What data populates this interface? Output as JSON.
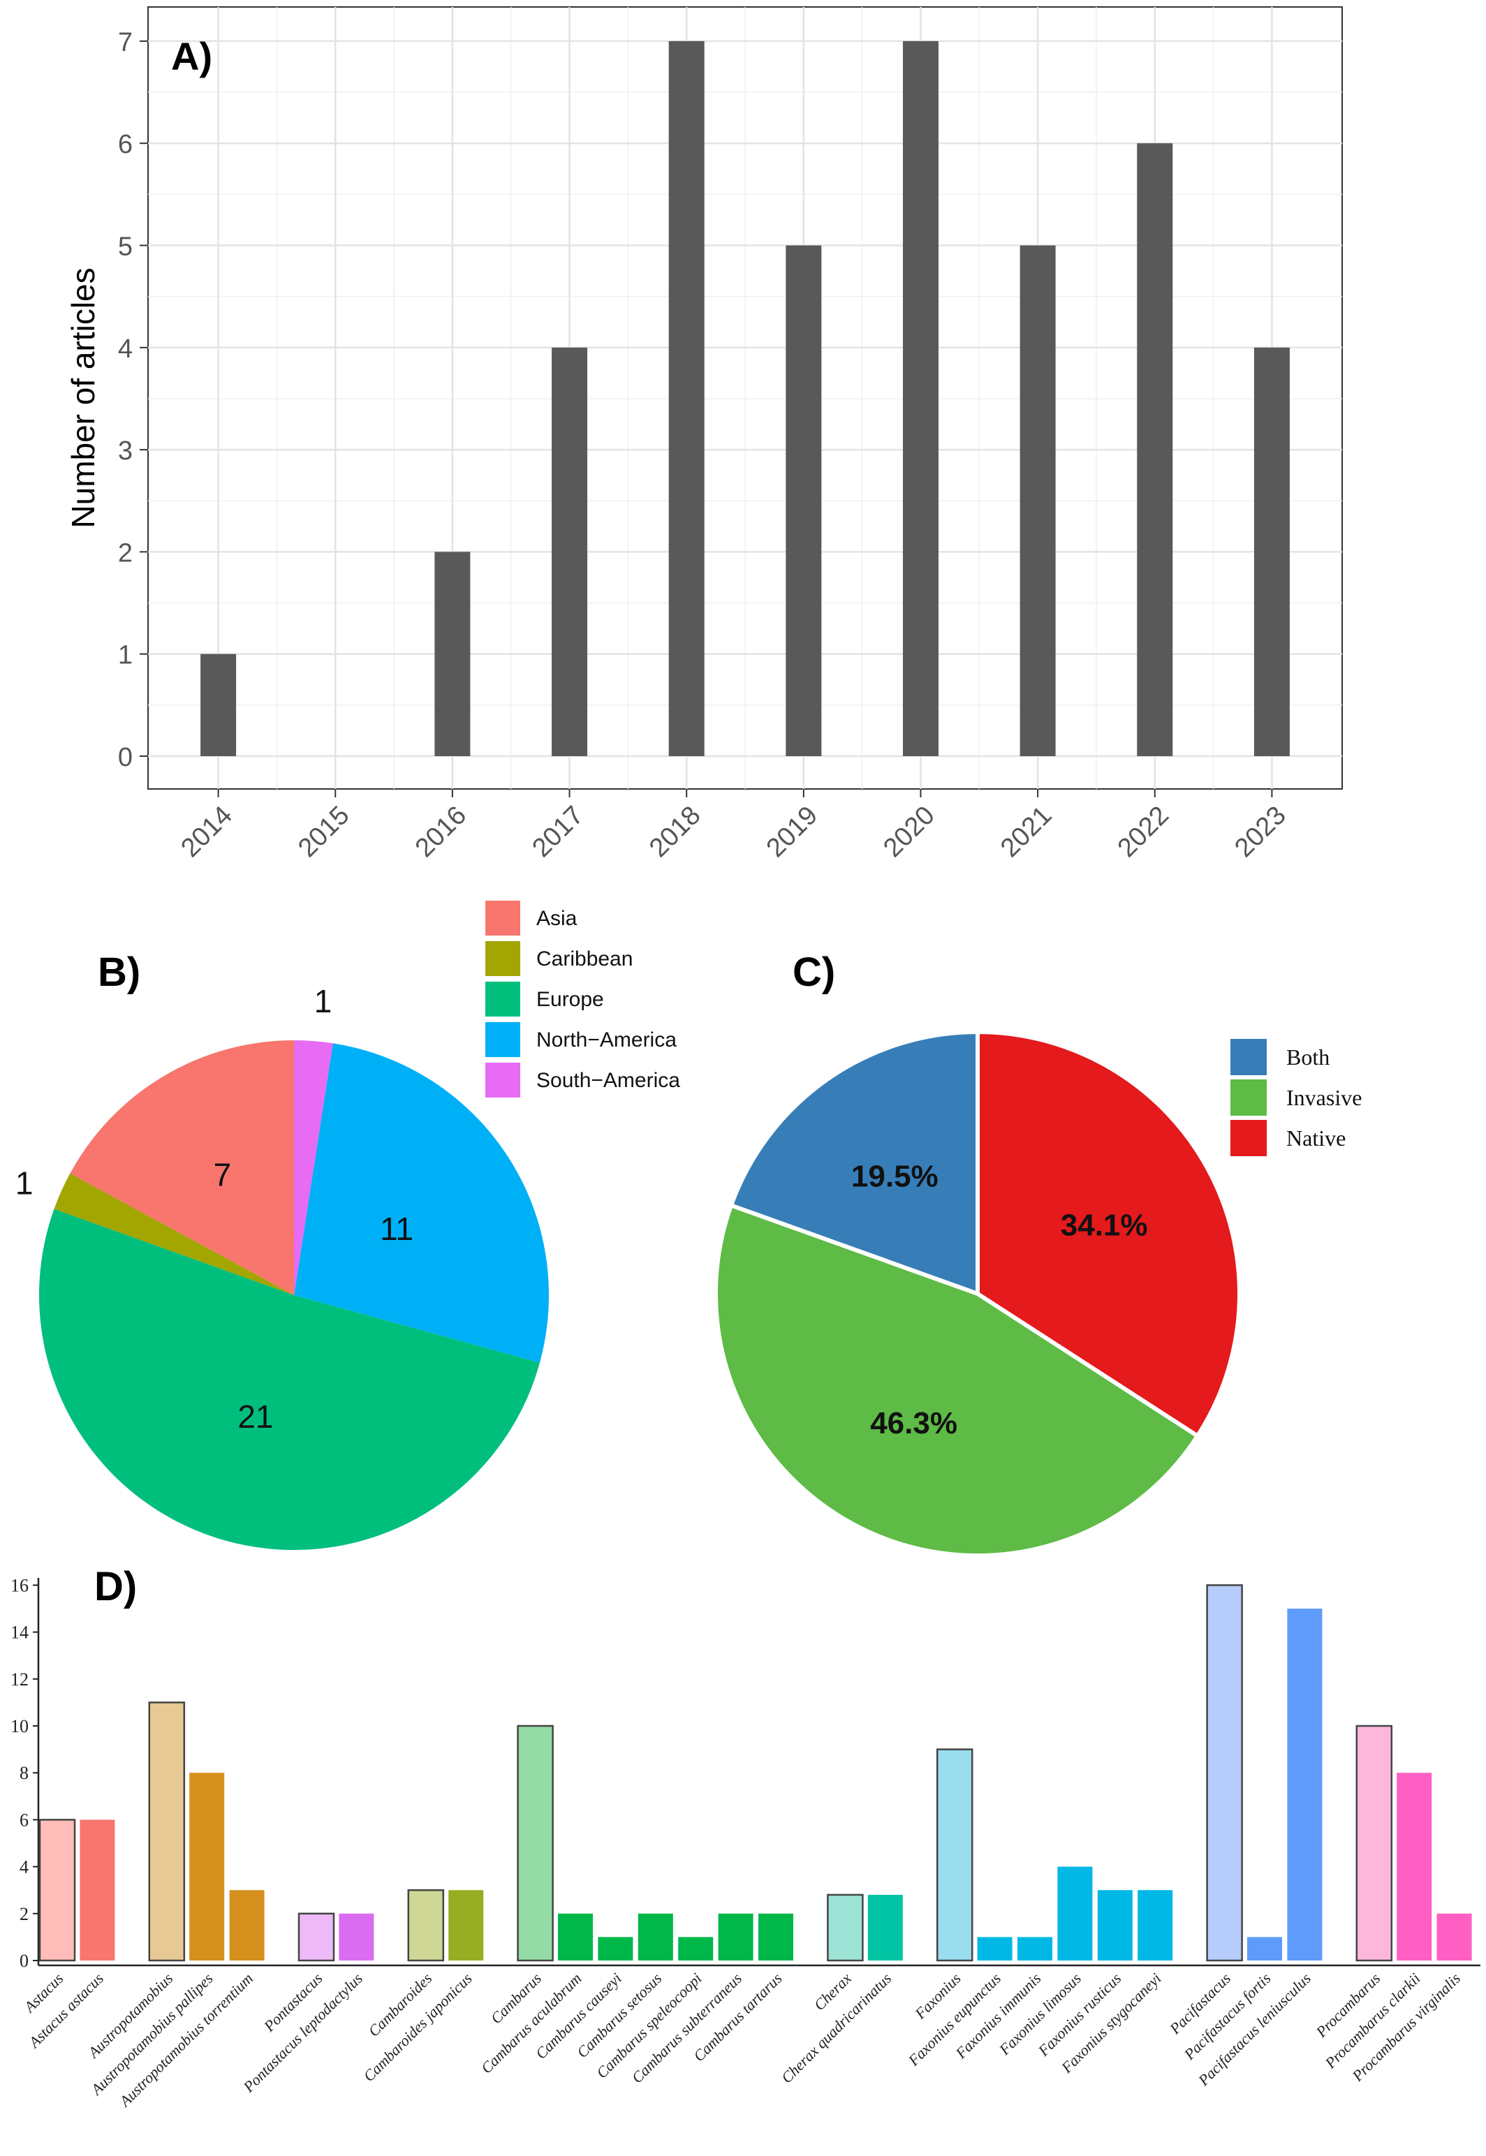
{
  "chart_data": [
    {
      "type": "bar",
      "panel_label": "A)",
      "ylabel": "Number of articles",
      "categories": [
        "2014",
        "2015",
        "2016",
        "2017",
        "2018",
        "2019",
        "2020",
        "2021",
        "2022",
        "2023"
      ],
      "values": [
        1,
        0,
        2,
        4,
        7,
        5,
        7,
        5,
        6,
        4
      ],
      "ylim": [
        0,
        7
      ],
      "yticks": [
        0,
        1,
        2,
        3,
        4,
        5,
        6,
        7
      ],
      "grid": true,
      "bar_color": "#595959"
    },
    {
      "type": "pie",
      "panel_label": "B)",
      "categories": [
        "Asia",
        "Caribbean",
        "Europe",
        "North−America",
        "South−America"
      ],
      "values": [
        7,
        1,
        21,
        11,
        1
      ],
      "colors": [
        "#F8766D",
        "#A3A500",
        "#00BF7D",
        "#00B0F6",
        "#E76BF3"
      ],
      "legend": "top-right"
    },
    {
      "type": "pie",
      "panel_label": "C)",
      "categories": [
        "Both",
        "Invasive",
        "Native"
      ],
      "values": [
        19.5,
        46.3,
        34.1
      ],
      "labels": [
        "19.5%",
        "46.3%",
        "34.1%"
      ],
      "colors": [
        "#377EB8",
        "#5DBB46",
        "#E41A1C"
      ],
      "legend": "top-right"
    },
    {
      "type": "bar",
      "panel_label": "D)",
      "ylim": [
        0,
        16
      ],
      "yticks": [
        0,
        2,
        4,
        6,
        8,
        10,
        12,
        14,
        16
      ],
      "categories": [
        "Astacus",
        "Astacus astacus",
        "Austropotamobius",
        "Austropotamobius pallipes",
        "Austropotamobius torrentium",
        "Pontastacus",
        "Pontastacus leptodactylus",
        "Cambaroides",
        "Cambaroides japonicus",
        "Cambarus",
        "Cambarus aculabrum",
        "Cambarus causeyi",
        "Cambarus setosus",
        "Cambarus speleocoopi",
        "Cambarus subterraneus",
        "Cambarus tartarus",
        "Cherax",
        "Cherax quadricarinatus",
        "Faxonius",
        "Faxonius eupunctus",
        "Faxonius immunis",
        "Faxonius limosus",
        "Faxonius rusticus",
        "Faxonius stygocaneyi",
        "Pacifastacus",
        "Pacifastacus fortis",
        "Pacifastacus leniusculus",
        "Procambarus",
        "Procambarus clarkii",
        "Procambarus virginalis"
      ],
      "values": [
        6,
        6,
        11,
        8,
        3,
        2,
        2,
        3,
        3,
        10,
        2,
        1,
        2,
        1,
        2,
        2,
        2.8,
        2.8,
        9,
        1,
        1,
        4,
        3,
        3,
        16,
        1,
        15,
        10,
        8,
        2
      ],
      "groups": [
        {
          "genus": "Astacus",
          "count": 2,
          "light": "#FFBCB8",
          "dark": "#F8766D"
        },
        {
          "genus": "Austropotamobius",
          "count": 3,
          "light": "#E6C994",
          "dark": "#D6901E"
        },
        {
          "genus": "Pontastacus",
          "count": 2,
          "light": "#EEB9F7",
          "dark": "#DA6CF2"
        },
        {
          "genus": "Cambaroides",
          "count": 2,
          "light": "#CFD796",
          "dark": "#98AE22"
        },
        {
          "genus": "Cambarus",
          "count": 7,
          "light": "#95DBA6",
          "dark": "#00B74A"
        },
        {
          "genus": "Cherax",
          "count": 2,
          "light": "#9CE3D6",
          "dark": "#00C4A4"
        },
        {
          "genus": "Faxonius",
          "count": 6,
          "light": "#9ADDEE",
          "dark": "#00B8E6"
        },
        {
          "genus": "Pacifastacus",
          "count": 3,
          "light": "#B6CDFC",
          "dark": "#5E9BFB"
        },
        {
          "genus": "Procambarus",
          "count": 3,
          "light": "#FDB7DB",
          "dark": "#FF5EC3"
        }
      ]
    }
  ]
}
